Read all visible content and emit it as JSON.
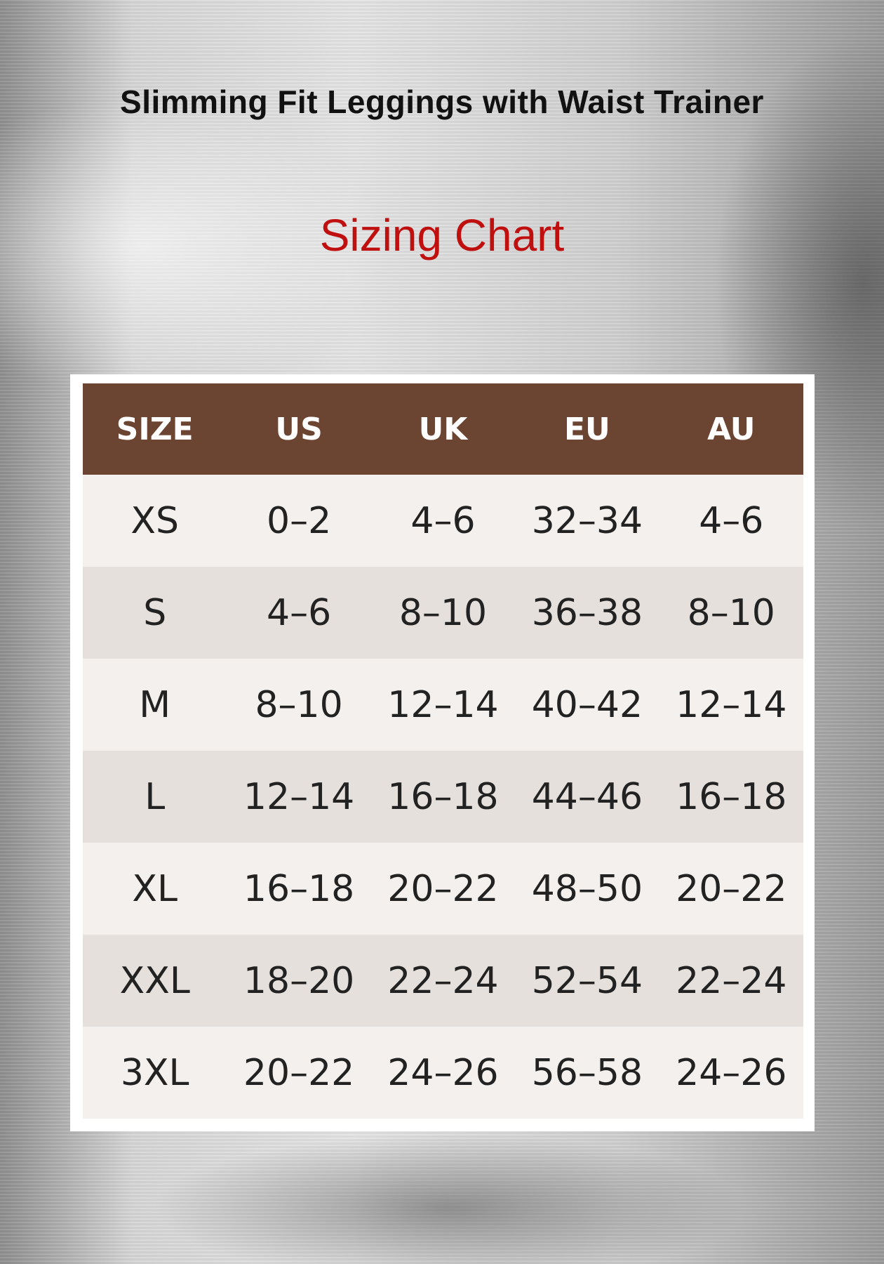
{
  "title": "Slimming Fit Leggings with Waist Trainer",
  "subtitle": "Sizing Chart",
  "colors": {
    "header_bg": "#6b4532",
    "accent": "#c00f0f",
    "row_light": "#f3f0ed",
    "row_dark": "#e5e0dc"
  },
  "table": {
    "headers": [
      "SIZE",
      "US",
      "UK",
      "EU",
      "AU"
    ],
    "rows": [
      [
        "XS",
        "0–2",
        "4–6",
        "32–34",
        "4–6"
      ],
      [
        "S",
        "4–6",
        "8–10",
        "36–38",
        "8–10"
      ],
      [
        "M",
        "8–10",
        "12–14",
        "40–42",
        "12–14"
      ],
      [
        "L",
        "12–14",
        "16–18",
        "44–46",
        "16–18"
      ],
      [
        "XL",
        "16–18",
        "20–22",
        "48–50",
        "20–22"
      ],
      [
        "XXL",
        "18–20",
        "22–24",
        "52–54",
        "22–24"
      ],
      [
        "3XL",
        "20–22",
        "24–26",
        "56–58",
        "24–26"
      ]
    ]
  }
}
